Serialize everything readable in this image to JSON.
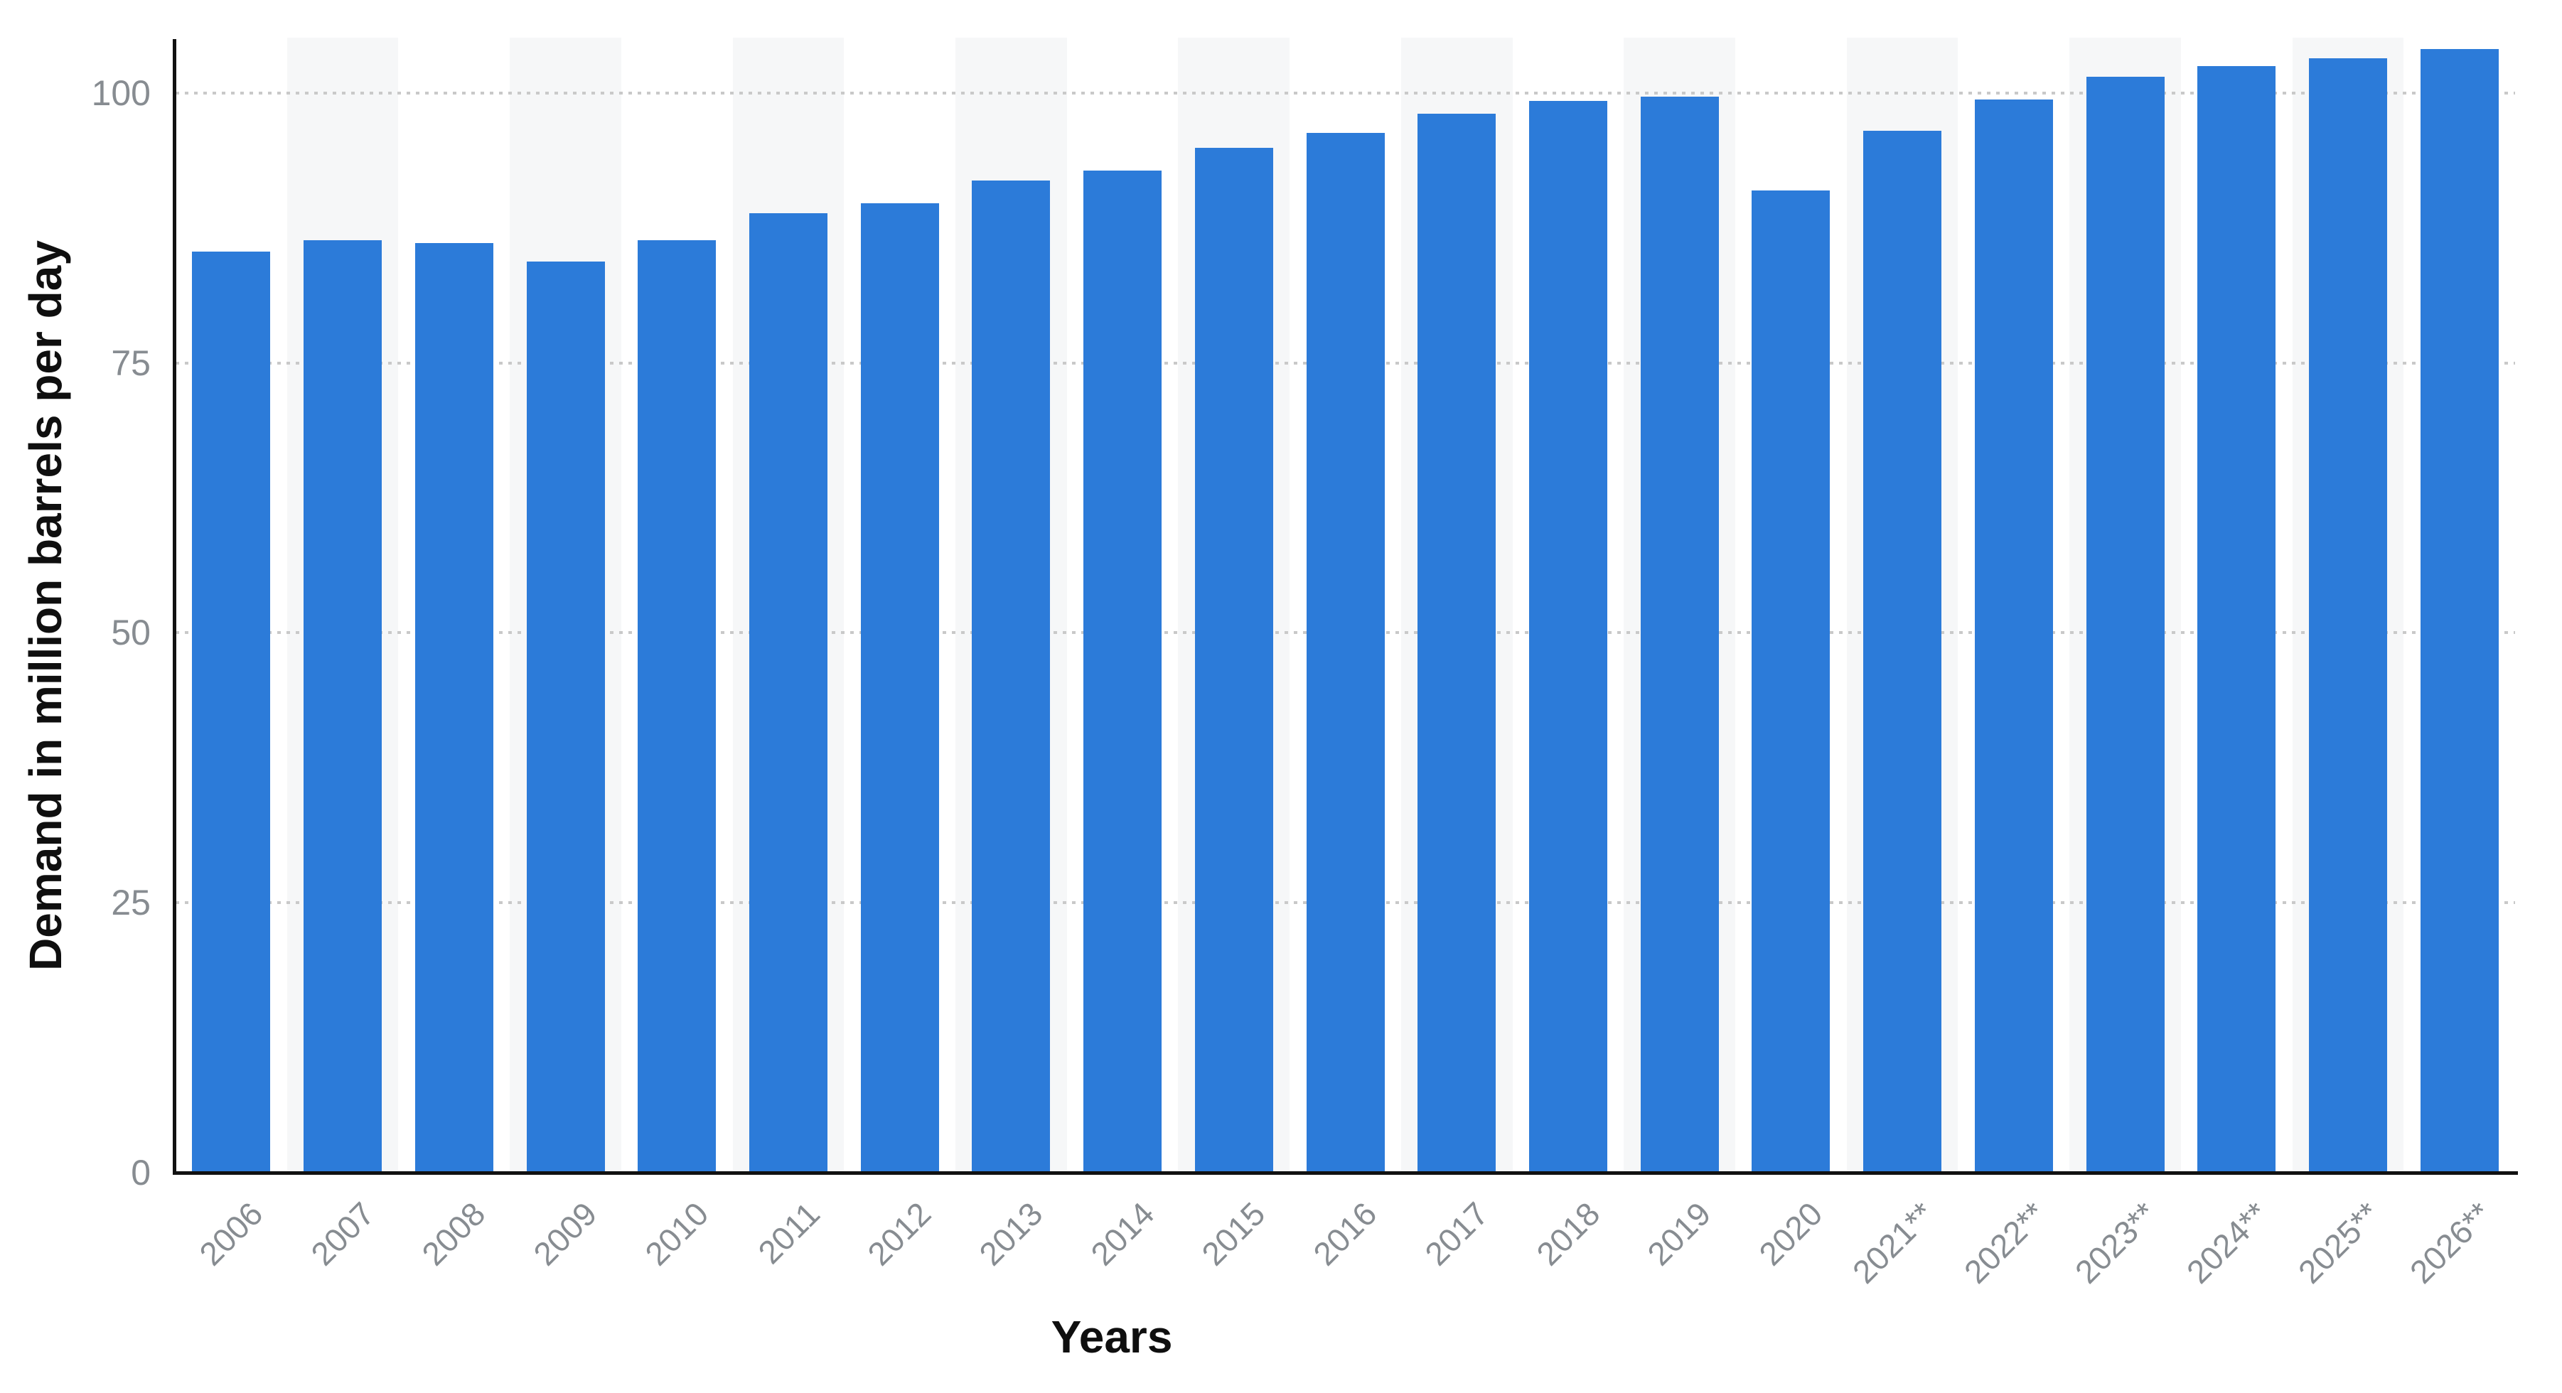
{
  "chart_data": {
    "type": "bar",
    "title": "",
    "categories": [
      "2006",
      "2007",
      "2008",
      "2009",
      "2010",
      "2011",
      "2012",
      "2013",
      "2014",
      "2015",
      "2016",
      "2017",
      "2018",
      "2019",
      "2020",
      "2021**",
      "2022**",
      "2023**",
      "2024**",
      "2025**",
      "2026**"
    ],
    "values": [
      85.3,
      86.4,
      86.1,
      84.4,
      86.4,
      88.9,
      89.8,
      91.9,
      92.8,
      94.9,
      96.3,
      98.1,
      99.3,
      99.7,
      91.0,
      96.5,
      99.4,
      101.5,
      102.5,
      103.2,
      104.1
    ],
    "xlabel": "Years",
    "ylabel": "Demand in million barrels per day",
    "ylim": [
      0,
      105
    ],
    "yticks": [
      0,
      25,
      50,
      75,
      100
    ],
    "grid": "horizontal-dotted",
    "legend": "none",
    "band_pattern": "alternating light column background on every second category starting with 2007",
    "colors": {
      "bar": "#2c7bd9",
      "column_band": "#f6f7f8",
      "gridline": "#c9c9c9",
      "tick_text": "#878c91",
      "axis_line": "#111111",
      "title_text": "#0f0f0f",
      "background": "#ffffff"
    }
  }
}
